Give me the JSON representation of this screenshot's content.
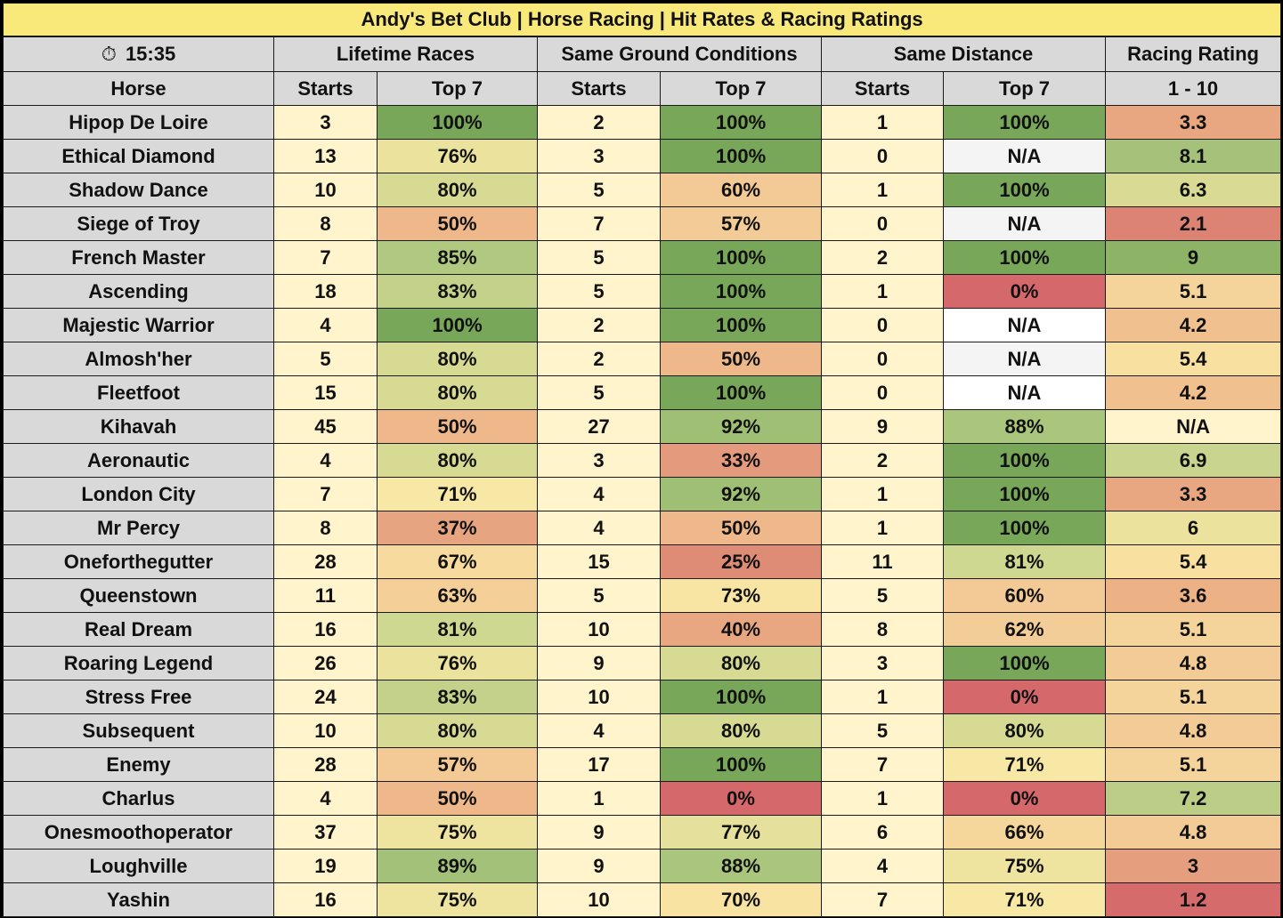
{
  "title": "Andy's Bet Club | Horse Racing | Hit Rates & Racing Ratings",
  "clock": {
    "icon": "stopwatch-icon",
    "glyph": "⏱",
    "time": "15:35"
  },
  "groups": [
    "Lifetime Races",
    "Same Ground Conditions",
    "Same Distance",
    "Racing Rating"
  ],
  "subheaders": [
    "Horse",
    "Starts",
    "Top 7",
    "Starts",
    "Top 7",
    "Starts",
    "Top 7",
    "1 - 10"
  ],
  "colors": {
    "header_bg": "#d9d9d9",
    "title_bg": "#f8e97a",
    "starts_bg": "#fff4cc",
    "na_bg": "#f4f4f4",
    "scale": {
      "red": "#d5686a",
      "orange": "#e9a781",
      "peach": "#f3c995",
      "yellow": "#f8e8a5",
      "khaki": "#e8e39c",
      "pale_green": "#d2d991",
      "light_green": "#a8c67c",
      "green": "#7ca95c"
    }
  },
  "rows": [
    {
      "horse": "Hipop De Loire",
      "life_starts": "3",
      "life_top7": "100%",
      "ground_starts": "2",
      "ground_top7": "100%",
      "dist_starts": "1",
      "dist_top7": "100%",
      "rating": "3.3",
      "c_life": "#78a75a",
      "c_ground": "#78a75a",
      "c_dist": "#78a75a",
      "c_rating": "#e9a781"
    },
    {
      "horse": "Ethical Diamond",
      "life_starts": "13",
      "life_top7": "76%",
      "ground_starts": "3",
      "ground_top7": "100%",
      "dist_starts": "0",
      "dist_top7": "N/A",
      "rating": "8.1",
      "c_life": "#ebe29e",
      "c_ground": "#78a75a",
      "c_dist": "#f4f4f4",
      "c_rating": "#a6c27a"
    },
    {
      "horse": "Shadow Dance",
      "life_starts": "10",
      "life_top7": "80%",
      "ground_starts": "5",
      "ground_top7": "60%",
      "dist_starts": "1",
      "dist_top7": "100%",
      "rating": "6.3",
      "c_life": "#d6da93",
      "c_ground": "#f3c995",
      "c_dist": "#78a75a",
      "c_rating": "#d9db95"
    },
    {
      "horse": "Siege of Troy",
      "life_starts": "8",
      "life_top7": "50%",
      "ground_starts": "7",
      "ground_top7": "57%",
      "dist_starts": "0",
      "dist_top7": "N/A",
      "rating": "2.1",
      "c_life": "#eeb88a",
      "c_ground": "#f3cb97",
      "c_dist": "#f4f4f4",
      "c_rating": "#dc8374"
    },
    {
      "horse": "French Master",
      "life_starts": "7",
      "life_top7": "85%",
      "ground_starts": "5",
      "ground_top7": "100%",
      "dist_starts": "2",
      "dist_top7": "100%",
      "rating": "9",
      "c_life": "#b1c880",
      "c_ground": "#78a75a",
      "c_dist": "#78a75a",
      "c_rating": "#8cb366"
    },
    {
      "horse": "Ascending",
      "life_starts": "18",
      "life_top7": "83%",
      "ground_starts": "5",
      "ground_top7": "100%",
      "dist_starts": "1",
      "dist_top7": "0%",
      "rating": "5.1",
      "c_life": "#c3d18b",
      "c_ground": "#78a75a",
      "c_dist": "#d5686a",
      "c_rating": "#f5d49b"
    },
    {
      "horse": "Majestic Warrior",
      "life_starts": "4",
      "life_top7": "100%",
      "ground_starts": "2",
      "ground_top7": "100%",
      "dist_starts": "0",
      "dist_top7": "N/A",
      "rating": "4.2",
      "c_life": "#78a75a",
      "c_ground": "#78a75a",
      "c_dist": "#ffffff",
      "c_rating": "#f0c08e"
    },
    {
      "horse": "Almosh'her",
      "life_starts": "5",
      "life_top7": "80%",
      "ground_starts": "2",
      "ground_top7": "50%",
      "dist_starts": "0",
      "dist_top7": "N/A",
      "rating": "5.4",
      "c_life": "#d6da93",
      "c_ground": "#eeb88a",
      "c_dist": "#f4f4f4",
      "c_rating": "#f8e0a1"
    },
    {
      "horse": "Fleetfoot",
      "life_starts": "15",
      "life_top7": "80%",
      "ground_starts": "5",
      "ground_top7": "100%",
      "dist_starts": "0",
      "dist_top7": "N/A",
      "rating": "4.2",
      "c_life": "#d6da93",
      "c_ground": "#78a75a",
      "c_dist": "#ffffff",
      "c_rating": "#f0c08e"
    },
    {
      "horse": "Kihavah",
      "life_starts": "45",
      "life_top7": "50%",
      "ground_starts": "27",
      "ground_top7": "92%",
      "dist_starts": "9",
      "dist_top7": "88%",
      "rating": "N/A",
      "c_life": "#eeb88a",
      "c_ground": "#9fbf75",
      "c_dist": "#aac67d",
      "c_rating": "#fff4cc"
    },
    {
      "horse": "Aeronautic",
      "life_starts": "4",
      "life_top7": "80%",
      "ground_starts": "3",
      "ground_top7": "33%",
      "dist_starts": "2",
      "dist_top7": "100%",
      "rating": "6.9",
      "c_life": "#d6da93",
      "c_ground": "#e49a7c",
      "c_dist": "#78a75a",
      "c_rating": "#c9d48e"
    },
    {
      "horse": "London City",
      "life_starts": "7",
      "life_top7": "71%",
      "ground_starts": "4",
      "ground_top7": "92%",
      "dist_starts": "1",
      "dist_top7": "100%",
      "rating": "3.3",
      "c_life": "#f8e8a5",
      "c_ground": "#9fbf75",
      "c_dist": "#78a75a",
      "c_rating": "#e9a781"
    },
    {
      "horse": "Mr Percy",
      "life_starts": "8",
      "life_top7": "37%",
      "ground_starts": "4",
      "ground_top7": "50%",
      "dist_starts": "1",
      "dist_top7": "100%",
      "rating": "6",
      "c_life": "#e6a480",
      "c_ground": "#eeb88a",
      "c_dist": "#78a75a",
      "c_rating": "#ebe29e"
    },
    {
      "horse": "Oneforthegutter",
      "life_starts": "28",
      "life_top7": "67%",
      "ground_starts": "15",
      "ground_top7": "25%",
      "dist_starts": "11",
      "dist_top7": "81%",
      "rating": "5.4",
      "c_life": "#f6da9e",
      "c_ground": "#df8c76",
      "c_dist": "#cfd890",
      "c_rating": "#f8e0a1"
    },
    {
      "horse": "Queenstown",
      "life_starts": "11",
      "life_top7": "63%",
      "ground_starts": "5",
      "ground_top7": "73%",
      "dist_starts": "5",
      "dist_top7": "60%",
      "rating": "3.6",
      "c_life": "#f4cf98",
      "c_ground": "#f8e5a3",
      "c_dist": "#f3c995",
      "c_rating": "#ecb286"
    },
    {
      "horse": "Real Dream",
      "life_starts": "16",
      "life_top7": "81%",
      "ground_starts": "10",
      "ground_top7": "40%",
      "dist_starts": "8",
      "dist_top7": "62%",
      "rating": "5.1",
      "c_life": "#cfd890",
      "c_ground": "#e9a781",
      "c_dist": "#f3cd97",
      "c_rating": "#f5d49b"
    },
    {
      "horse": "Roaring Legend",
      "life_starts": "26",
      "life_top7": "76%",
      "ground_starts": "9",
      "ground_top7": "80%",
      "dist_starts": "3",
      "dist_top7": "100%",
      "rating": "4.8",
      "c_life": "#ebe29e",
      "c_ground": "#d6da93",
      "c_dist": "#78a75a",
      "c_rating": "#f3cb97"
    },
    {
      "horse": "Stress Free",
      "life_starts": "24",
      "life_top7": "83%",
      "ground_starts": "10",
      "ground_top7": "100%",
      "dist_starts": "1",
      "dist_top7": "0%",
      "rating": "5.1",
      "c_life": "#c3d18b",
      "c_ground": "#78a75a",
      "c_dist": "#d5686a",
      "c_rating": "#f5d49b"
    },
    {
      "horse": "Subsequent",
      "life_starts": "10",
      "life_top7": "80%",
      "ground_starts": "4",
      "ground_top7": "80%",
      "dist_starts": "5",
      "dist_top7": "80%",
      "rating": "4.8",
      "c_life": "#d6da93",
      "c_ground": "#d6da93",
      "c_dist": "#d6da93",
      "c_rating": "#f3cb97"
    },
    {
      "horse": "Enemy",
      "life_starts": "28",
      "life_top7": "57%",
      "ground_starts": "17",
      "ground_top7": "100%",
      "dist_starts": "7",
      "dist_top7": "71%",
      "rating": "5.1",
      "c_life": "#f3c995",
      "c_ground": "#78a75a",
      "c_dist": "#f8e8a5",
      "c_rating": "#f5d49b"
    },
    {
      "horse": "Charlus",
      "life_starts": "4",
      "life_top7": "50%",
      "ground_starts": "1",
      "ground_top7": "0%",
      "dist_starts": "1",
      "dist_top7": "0%",
      "rating": "7.2",
      "c_life": "#eeb88a",
      "c_ground": "#d5686a",
      "c_dist": "#d5686a",
      "c_rating": "#bccd87"
    },
    {
      "horse": "Onesmoothoperator",
      "life_starts": "37",
      "life_top7": "75%",
      "ground_starts": "9",
      "ground_top7": "77%",
      "dist_starts": "6",
      "dist_top7": "66%",
      "rating": "4.8",
      "c_life": "#eee39f",
      "c_ground": "#e5e09b",
      "c_dist": "#f5d79c",
      "c_rating": "#f3cb97"
    },
    {
      "horse": "Loughville",
      "life_starts": "19",
      "life_top7": "89%",
      "ground_starts": "9",
      "ground_top7": "88%",
      "dist_starts": "4",
      "dist_top7": "75%",
      "rating": "3",
      "c_life": "#a3c178",
      "c_ground": "#aac67d",
      "c_dist": "#eee39f",
      "c_rating": "#e69f7e"
    },
    {
      "horse": "Yashin",
      "life_starts": "16",
      "life_top7": "75%",
      "ground_starts": "10",
      "ground_top7": "70%",
      "dist_starts": "7",
      "dist_top7": "71%",
      "rating": "1.2",
      "c_life": "#eee39f",
      "c_ground": "#f8e3a3",
      "c_dist": "#f8e8a5",
      "c_rating": "#d66b6b"
    }
  ]
}
